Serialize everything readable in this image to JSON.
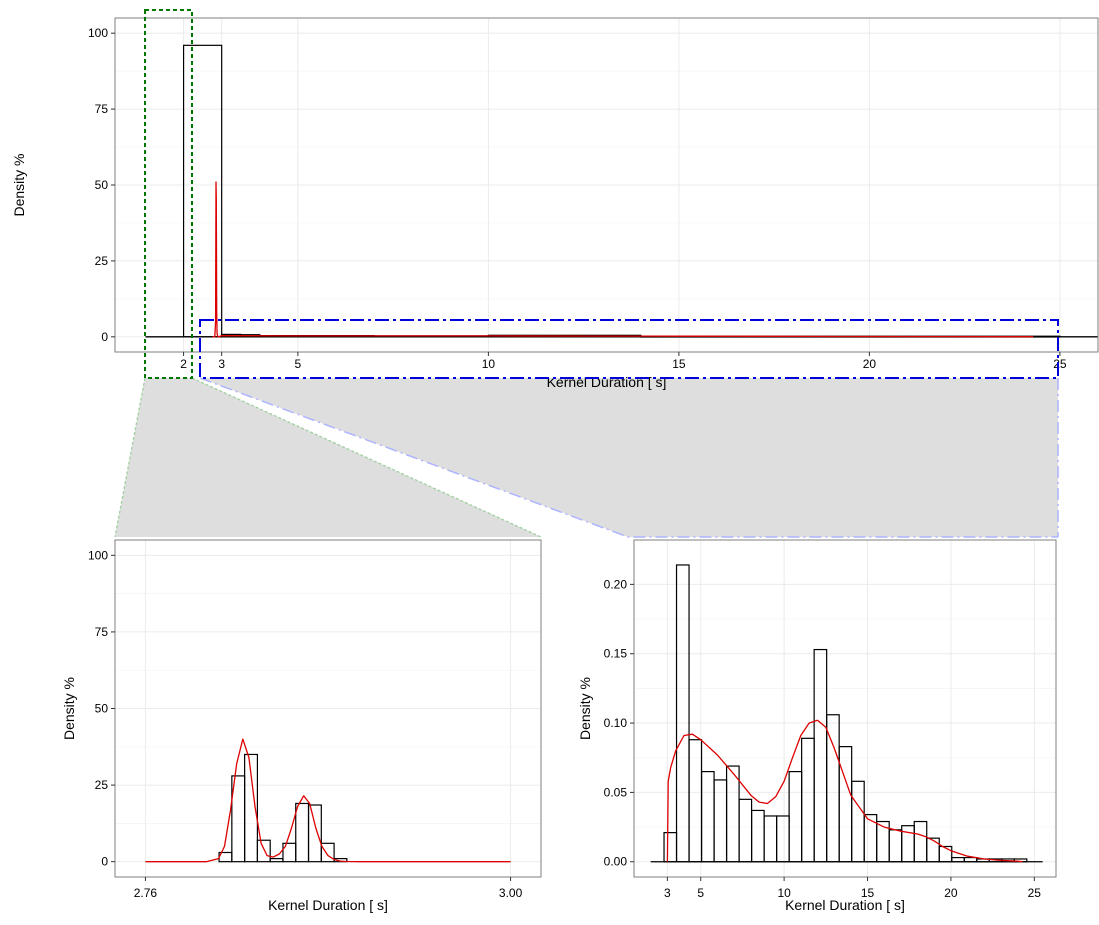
{
  "colors": {
    "bars": "#000000",
    "density": "#dd0000",
    "grid": "#ebebeb",
    "zoom_fill": "#dedede",
    "green_box": "#007700",
    "blue_box": "#0000dd"
  },
  "chart_data": [
    {
      "type": "bar",
      "panel": "overview",
      "title": "",
      "xlabel": "Kernel Duration [ s]",
      "ylabel": "Density %",
      "xlim": [
        0.2,
        26.0
      ],
      "ylim": [
        -5,
        105
      ],
      "x_ticks": [
        2,
        3,
        5,
        10,
        15,
        20,
        25
      ],
      "x_tick_labels": [
        "2",
        "3",
        "5",
        "10",
        "15",
        "20",
        "25"
      ],
      "y_ticks": [
        0,
        25,
        50,
        75,
        100
      ],
      "y_tick_labels": [
        "0",
        "25",
        "50",
        "75",
        "100"
      ],
      "grid": true,
      "bars": [
        {
          "x0": 2.0,
          "x1": 3.0,
          "value": 96
        },
        {
          "x0": 3.0,
          "x1": 3.5,
          "value": 0.8
        },
        {
          "x0": 3.5,
          "x1": 4.0,
          "value": 0.7
        },
        {
          "x0": 4.0,
          "x1": 7.0,
          "value": 0.4
        },
        {
          "x0": 7.0,
          "x1": 10.0,
          "value": 0.3
        },
        {
          "x0": 10.0,
          "x1": 14.0,
          "value": 0.5
        },
        {
          "x0": 14.0,
          "x1": 25.0,
          "value": 0.2
        }
      ],
      "baseline": [
        1.0,
        26.0
      ],
      "density": {
        "x": [
          2.76,
          2.8,
          2.82,
          2.84,
          2.85,
          2.86,
          2.87,
          2.88,
          2.9,
          2.92,
          3.0,
          5,
          10,
          15,
          20,
          24.3
        ],
        "y": [
          0,
          0,
          0,
          5,
          51,
          45,
          8,
          1,
          0,
          0,
          0.4,
          0.3,
          0.3,
          0.2,
          0.1,
          0.05
        ]
      }
    },
    {
      "type": "bar",
      "panel": "zoom-left",
      "title": "",
      "xlabel": "Kernel Duration [ s]",
      "ylabel": "Density %",
      "xlim": [
        2.74,
        3.02
      ],
      "ylim": [
        -5,
        105
      ],
      "x_ticks": [
        2.76,
        3.0
      ],
      "x_tick_labels": [
        "2.76",
        "3.00"
      ],
      "y_ticks": [
        0,
        25,
        50,
        75,
        100
      ],
      "y_tick_labels": [
        "0",
        "25",
        "50",
        "75",
        "100"
      ],
      "grid": true,
      "bins": [
        {
          "x0": 2.8084,
          "x1": 2.8168,
          "value": 3
        },
        {
          "x0": 2.8168,
          "x1": 2.8252,
          "value": 28
        },
        {
          "x0": 2.8252,
          "x1": 2.8336,
          "value": 35
        },
        {
          "x0": 2.8336,
          "x1": 2.842,
          "value": 7
        },
        {
          "x0": 2.842,
          "x1": 2.8504,
          "value": 1
        },
        {
          "x0": 2.8504,
          "x1": 2.8588,
          "value": 6
        },
        {
          "x0": 2.8588,
          "x1": 2.8672,
          "value": 19
        },
        {
          "x0": 2.8672,
          "x1": 2.8756,
          "value": 18.5
        },
        {
          "x0": 2.8756,
          "x1": 2.884,
          "value": 6
        },
        {
          "x0": 2.884,
          "x1": 2.8924,
          "value": 1
        }
      ],
      "density": {
        "x": [
          2.76,
          2.8,
          2.808,
          2.812,
          2.816,
          2.82,
          2.824,
          2.828,
          2.832,
          2.836,
          2.84,
          2.844,
          2.848,
          2.852,
          2.856,
          2.86,
          2.864,
          2.868,
          2.872,
          2.876,
          2.88,
          2.884,
          2.888,
          2.892,
          2.9,
          3.0
        ],
        "y": [
          0,
          0,
          1,
          5,
          17,
          32,
          40,
          34,
          18,
          6,
          2,
          1.5,
          2.5,
          5,
          11,
          18,
          21.5,
          19,
          11,
          5,
          2,
          0.7,
          0.2,
          0.05,
          0,
          0
        ]
      }
    },
    {
      "type": "bar",
      "panel": "zoom-right",
      "title": "",
      "xlabel": "Kernel Duration [ s]",
      "ylabel": "Density %",
      "xlim": [
        1.0,
        26.3
      ],
      "ylim": [
        -0.011,
        0.232
      ],
      "x_ticks": [
        3,
        5,
        10,
        15,
        20,
        25
      ],
      "x_tick_labels": [
        "3",
        "5",
        "10",
        "15",
        "20",
        "25"
      ],
      "y_ticks": [
        0.0,
        0.05,
        0.1,
        0.15,
        0.2
      ],
      "y_tick_labels": [
        "0.00",
        "0.05",
        "0.10",
        "0.15",
        "0.20"
      ],
      "grid": true,
      "bin_start": 2.8,
      "bin_width": 0.75,
      "values": [
        0.021,
        0.214,
        0.088,
        0.065,
        0.059,
        0.069,
        0.045,
        0.037,
        0.033,
        0.033,
        0.065,
        0.089,
        0.153,
        0.106,
        0.083,
        0.058,
        0.034,
        0.029,
        0.023,
        0.026,
        0.029,
        0.017,
        0.011,
        0.003,
        0.003,
        0.002,
        0.002,
        0.002,
        0.002
      ],
      "baseline": [
        2.0,
        25.5
      ],
      "density": {
        "x": [
          3.0,
          3.05,
          3.2,
          3.5,
          4.0,
          4.5,
          5.0,
          6.0,
          7.0,
          8.0,
          8.5,
          9.0,
          9.5,
          10.0,
          10.5,
          11.0,
          11.5,
          12.0,
          12.5,
          13.0,
          14.0,
          15.0,
          16.0,
          17.0,
          18.0,
          18.5,
          19.0,
          19.5,
          20.0,
          21.0,
          22.0,
          23.0,
          24.0,
          24.3
        ],
        "y": [
          0.0,
          0.058,
          0.068,
          0.08,
          0.091,
          0.092,
          0.088,
          0.077,
          0.063,
          0.048,
          0.043,
          0.042,
          0.047,
          0.058,
          0.075,
          0.091,
          0.1,
          0.102,
          0.097,
          0.082,
          0.048,
          0.031,
          0.025,
          0.022,
          0.02,
          0.018,
          0.015,
          0.011,
          0.008,
          0.004,
          0.002,
          0.001,
          0.0004,
          0.0
        ]
      }
    }
  ]
}
